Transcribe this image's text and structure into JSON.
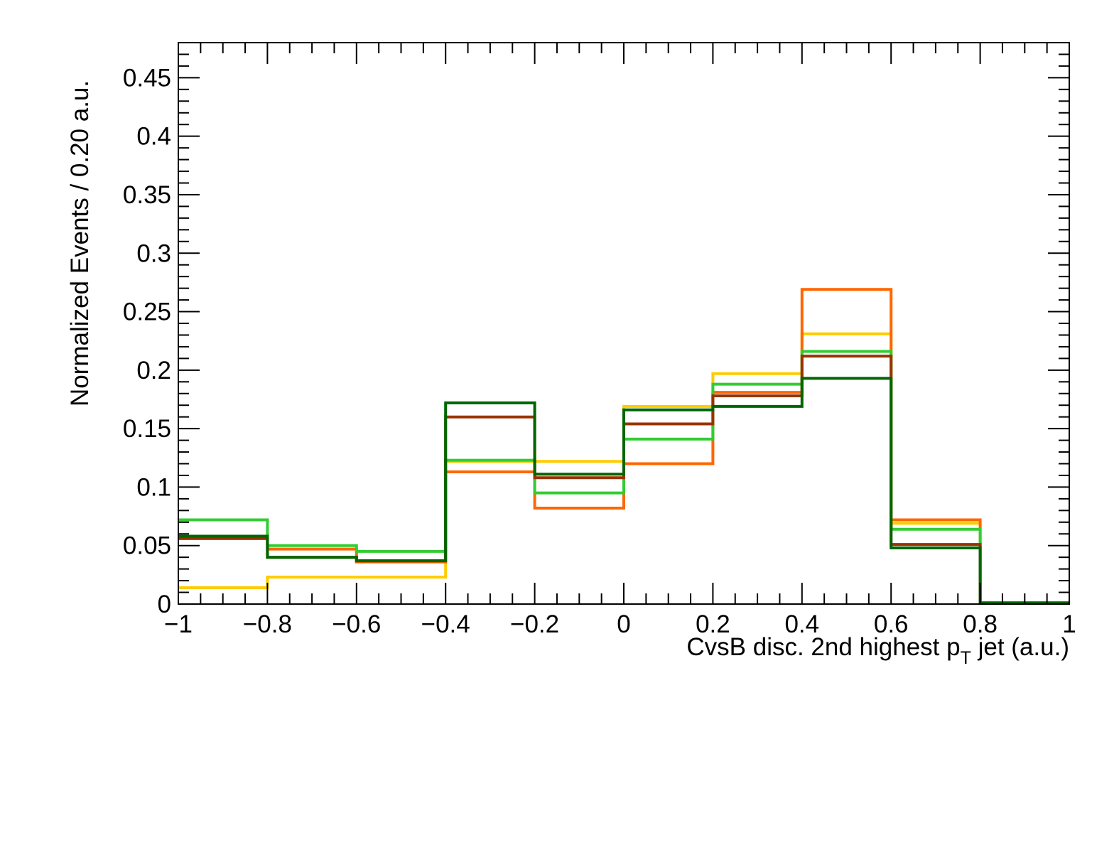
{
  "chart_data": {
    "type": "step-histogram",
    "xlabel_main": "CvsB disc. 2nd highest p",
    "xlabel_sub": "T",
    "xlabel_tail": " jet (a.u.)",
    "ylabel": "Normalized Events / 0.20 a.u.",
    "xlim": [
      -1,
      1
    ],
    "ylim": [
      0,
      0.48
    ],
    "x_ticks": [
      "−1",
      "−0.8",
      "−0.6",
      "−0.4",
      "−0.2",
      "0",
      "0.2",
      "0.4",
      "0.6",
      "0.8",
      "1"
    ],
    "x_tick_values": [
      -1,
      -0.8,
      -0.6,
      -0.4,
      -0.2,
      0,
      0.2,
      0.4,
      0.6,
      0.8,
      1
    ],
    "y_ticks": [
      "0",
      "0.05",
      "0.1",
      "0.15",
      "0.2",
      "0.25",
      "0.3",
      "0.35",
      "0.4",
      "0.45"
    ],
    "y_tick_values": [
      0,
      0.05,
      0.1,
      0.15,
      0.2,
      0.25,
      0.3,
      0.35,
      0.4,
      0.45
    ],
    "bin_edges": [
      -1,
      -0.8,
      -0.6,
      -0.4,
      -0.2,
      0,
      0.2,
      0.4,
      0.6,
      0.8,
      1
    ],
    "grid": false,
    "series": [
      {
        "color": "#ffcc00",
        "values": [
          0.014,
          0.023,
          0.023,
          0.122,
          0.122,
          0.169,
          0.197,
          0.231,
          0.069,
          0.001
        ]
      },
      {
        "color": "#ff6600",
        "values": [
          0.056,
          0.047,
          0.036,
          0.113,
          0.082,
          0.12,
          0.181,
          0.269,
          0.072,
          0.001
        ]
      },
      {
        "color": "#33cc33",
        "values": [
          0.072,
          0.05,
          0.045,
          0.123,
          0.095,
          0.141,
          0.188,
          0.216,
          0.064,
          0.001
        ]
      },
      {
        "color": "#993300",
        "values": [
          0.056,
          0.04,
          0.037,
          0.16,
          0.108,
          0.154,
          0.178,
          0.212,
          0.051,
          0.001
        ]
      },
      {
        "color": "#006600",
        "values": [
          0.058,
          0.04,
          0.037,
          0.172,
          0.111,
          0.166,
          0.169,
          0.193,
          0.048,
          0.001
        ]
      }
    ]
  }
}
